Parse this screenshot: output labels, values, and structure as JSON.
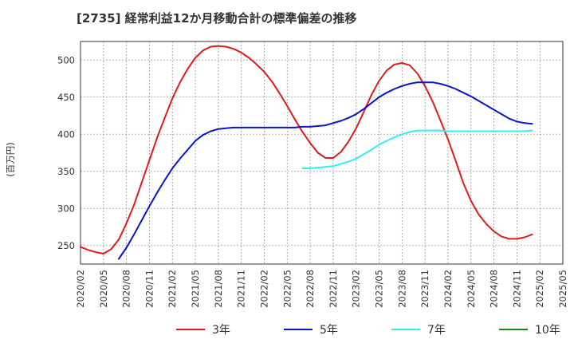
{
  "chart_data": {
    "type": "line",
    "title": "[2735]  経常利益12か月移動合計の標準偏差の推移",
    "ylabel": "(百万円)",
    "xlabel": "",
    "ylim": [
      225,
      525
    ],
    "yticks": [
      250,
      300,
      350,
      400,
      450,
      500
    ],
    "x_tick_labels": [
      "2020/02",
      "2020/05",
      "2020/08",
      "2020/11",
      "2021/02",
      "2021/05",
      "2021/08",
      "2021/11",
      "2022/02",
      "2022/05",
      "2022/08",
      "2022/11",
      "2023/02",
      "2023/05",
      "2023/08",
      "2023/11",
      "2024/02",
      "2024/05",
      "2024/08",
      "2024/11",
      "2025/02",
      "2025/05"
    ],
    "grid": true,
    "legend_position": "bottom",
    "series": [
      {
        "name": "3年",
        "color": "#e31a1c",
        "points": [
          [
            "2020/02",
            248
          ],
          [
            "2020/03",
            244
          ],
          [
            "2020/04",
            241
          ],
          [
            "2020/05",
            239
          ],
          [
            "2020/06",
            245
          ],
          [
            "2020/07",
            258
          ],
          [
            "2020/08",
            280
          ],
          [
            "2020/09",
            305
          ],
          [
            "2020/10",
            335
          ],
          [
            "2020/11",
            365
          ],
          [
            "2020/12",
            395
          ],
          [
            "2021/01",
            422
          ],
          [
            "2021/02",
            448
          ],
          [
            "2021/03",
            470
          ],
          [
            "2021/04",
            488
          ],
          [
            "2021/05",
            503
          ],
          [
            "2021/06",
            513
          ],
          [
            "2021/07",
            518
          ],
          [
            "2021/08",
            519
          ],
          [
            "2021/09",
            518
          ],
          [
            "2021/10",
            515
          ],
          [
            "2021/11",
            510
          ],
          [
            "2021/12",
            503
          ],
          [
            "2022/01",
            494
          ],
          [
            "2022/02",
            484
          ],
          [
            "2022/03",
            471
          ],
          [
            "2022/04",
            455
          ],
          [
            "2022/05",
            438
          ],
          [
            "2022/06",
            420
          ],
          [
            "2022/07",
            403
          ],
          [
            "2022/08",
            388
          ],
          [
            "2022/09",
            375
          ],
          [
            "2022/10",
            368
          ],
          [
            "2022/11",
            368
          ],
          [
            "2022/12",
            376
          ],
          [
            "2023/01",
            390
          ],
          [
            "2023/02",
            408
          ],
          [
            "2023/03",
            430
          ],
          [
            "2023/04",
            453
          ],
          [
            "2023/05",
            472
          ],
          [
            "2023/06",
            486
          ],
          [
            "2023/07",
            494
          ],
          [
            "2023/08",
            496
          ],
          [
            "2023/09",
            493
          ],
          [
            "2023/10",
            482
          ],
          [
            "2023/11",
            465
          ],
          [
            "2023/12",
            444
          ],
          [
            "2024/01",
            419
          ],
          [
            "2024/02",
            393
          ],
          [
            "2024/03",
            364
          ],
          [
            "2024/04",
            334
          ],
          [
            "2024/05",
            310
          ],
          [
            "2024/06",
            292
          ],
          [
            "2024/07",
            279
          ],
          [
            "2024/08",
            269
          ],
          [
            "2024/09",
            262
          ],
          [
            "2024/10",
            259
          ],
          [
            "2024/11",
            259
          ],
          [
            "2024/12",
            261
          ],
          [
            "2025/01",
            265
          ]
        ]
      },
      {
        "name": "5年",
        "color": "#0a14c8",
        "points": [
          [
            "2020/07",
            232
          ],
          [
            "2020/08",
            247
          ],
          [
            "2020/09",
            265
          ],
          [
            "2020/10",
            284
          ],
          [
            "2020/11",
            303
          ],
          [
            "2020/12",
            321
          ],
          [
            "2021/01",
            338
          ],
          [
            "2021/02",
            354
          ],
          [
            "2021/03",
            367
          ],
          [
            "2021/04",
            379
          ],
          [
            "2021/05",
            391
          ],
          [
            "2021/06",
            399
          ],
          [
            "2021/07",
            404
          ],
          [
            "2021/08",
            407
          ],
          [
            "2021/09",
            408
          ],
          [
            "2021/10",
            409
          ],
          [
            "2021/11",
            409
          ],
          [
            "2021/12",
            409
          ],
          [
            "2022/01",
            409
          ],
          [
            "2022/02",
            409
          ],
          [
            "2022/03",
            409
          ],
          [
            "2022/04",
            409
          ],
          [
            "2022/05",
            409
          ],
          [
            "2022/06",
            409
          ],
          [
            "2022/07",
            410
          ],
          [
            "2022/08",
            410
          ],
          [
            "2022/09",
            411
          ],
          [
            "2022/10",
            412
          ],
          [
            "2022/11",
            415
          ],
          [
            "2022/12",
            418
          ],
          [
            "2023/01",
            422
          ],
          [
            "2023/02",
            427
          ],
          [
            "2023/03",
            434
          ],
          [
            "2023/04",
            442
          ],
          [
            "2023/05",
            450
          ],
          [
            "2023/06",
            456
          ],
          [
            "2023/07",
            461
          ],
          [
            "2023/08",
            465
          ],
          [
            "2023/09",
            468
          ],
          [
            "2023/10",
            470
          ],
          [
            "2023/11",
            470
          ],
          [
            "2023/12",
            470
          ],
          [
            "2024/01",
            468
          ],
          [
            "2024/02",
            465
          ],
          [
            "2024/03",
            461
          ],
          [
            "2024/04",
            456
          ],
          [
            "2024/05",
            451
          ],
          [
            "2024/06",
            445
          ],
          [
            "2024/07",
            439
          ],
          [
            "2024/08",
            433
          ],
          [
            "2024/09",
            427
          ],
          [
            "2024/10",
            421
          ],
          [
            "2024/11",
            417
          ],
          [
            "2024/12",
            415
          ],
          [
            "2025/01",
            414
          ]
        ]
      },
      {
        "name": "7年",
        "color": "#33eeee",
        "points": [
          [
            "2022/07",
            354
          ],
          [
            "2022/08",
            354
          ],
          [
            "2022/09",
            355
          ],
          [
            "2022/10",
            356
          ],
          [
            "2022/11",
            357
          ],
          [
            "2022/12",
            360
          ],
          [
            "2023/01",
            363
          ],
          [
            "2023/02",
            367
          ],
          [
            "2023/03",
            373
          ],
          [
            "2023/04",
            379
          ],
          [
            "2023/05",
            386
          ],
          [
            "2023/06",
            391
          ],
          [
            "2023/07",
            396
          ],
          [
            "2023/08",
            400
          ],
          [
            "2023/09",
            403
          ],
          [
            "2023/10",
            405
          ],
          [
            "2023/11",
            405
          ],
          [
            "2023/12",
            405
          ],
          [
            "2024/01",
            405
          ],
          [
            "2024/02",
            404
          ],
          [
            "2024/03",
            404
          ],
          [
            "2024/04",
            404
          ],
          [
            "2024/05",
            404
          ],
          [
            "2024/06",
            404
          ],
          [
            "2024/07",
            404
          ],
          [
            "2024/08",
            404
          ],
          [
            "2024/09",
            404
          ],
          [
            "2024/10",
            404
          ],
          [
            "2024/11",
            404
          ],
          [
            "2024/12",
            404
          ],
          [
            "2025/01",
            405
          ]
        ]
      },
      {
        "name": "10年",
        "color": "#1a8a1a",
        "points": []
      }
    ]
  }
}
